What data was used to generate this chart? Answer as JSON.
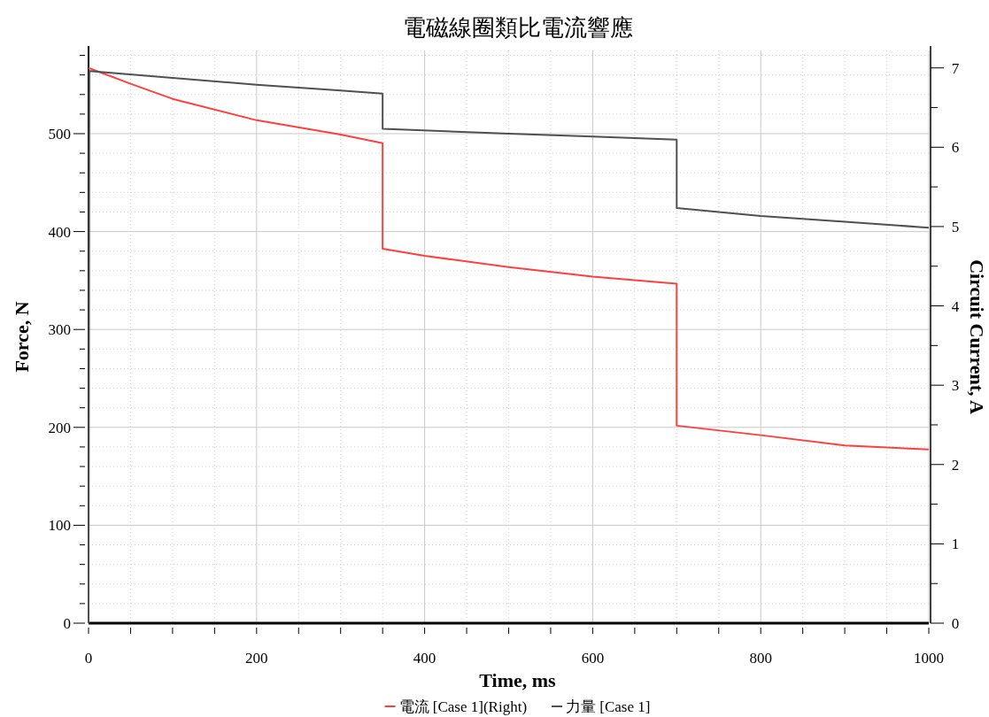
{
  "chart_data": {
    "type": "line",
    "title": "電磁線圈類比電流響應",
    "xlabel": "Time, ms",
    "ylabel": "Force, N",
    "y2label": "Circuit Current, A",
    "xlim": [
      0,
      1000
    ],
    "ylim": [
      0,
      585
    ],
    "y2lim": [
      0,
      7.22
    ],
    "xticks": [
      0,
      {
        "value": 50,
        "label": null
      },
      {
        "value": 100,
        "label": null
      },
      {
        "value": 150,
        "label": null
      },
      200,
      {
        "value": 250,
        "label": null
      },
      {
        "value": 300,
        "label": null
      },
      {
        "value": 350,
        "label": null
      },
      400,
      {
        "value": 450,
        "label": null
      },
      {
        "value": 500,
        "label": null
      },
      {
        "value": 550,
        "label": null
      },
      600,
      {
        "value": 650,
        "label": null
      },
      {
        "value": 700,
        "label": null
      },
      {
        "value": 750,
        "label": null
      },
      800,
      {
        "value": 850,
        "label": null
      },
      {
        "value": 900,
        "label": null
      },
      {
        "value": 950,
        "label": null
      },
      1000
    ],
    "yticks": [
      0,
      {
        "value": 20,
        "label": null
      },
      {
        "value": 40,
        "label": null
      },
      {
        "value": 60,
        "label": null
      },
      {
        "value": 80,
        "label": null
      },
      100,
      {
        "value": 120,
        "label": null
      },
      {
        "value": 140,
        "label": null
      },
      {
        "value": 160,
        "label": null
      },
      {
        "value": 180,
        "label": null
      },
      200,
      {
        "value": 220,
        "label": null
      },
      {
        "value": 240,
        "label": null
      },
      {
        "value": 260,
        "label": null
      },
      {
        "value": 280,
        "label": null
      },
      300,
      {
        "value": 320,
        "label": null
      },
      {
        "value": 340,
        "label": null
      },
      {
        "value": 360,
        "label": null
      },
      {
        "value": 380,
        "label": null
      },
      400,
      {
        "value": 420,
        "label": null
      },
      {
        "value": 440,
        "label": null
      },
      {
        "value": 460,
        "label": null
      },
      {
        "value": 480,
        "label": null
      },
      500,
      {
        "value": 520,
        "label": null
      },
      {
        "value": 540,
        "label": null
      },
      {
        "value": 560,
        "label": null
      },
      {
        "value": 580,
        "label": null
      }
    ],
    "y2ticks": [
      0,
      {
        "value": 0.5,
        "label": null
      },
      1,
      {
        "value": 1.5,
        "label": null
      },
      2,
      {
        "value": 2.5,
        "label": null
      },
      3,
      {
        "value": 3.5,
        "label": null
      },
      4,
      {
        "value": 4.5,
        "label": null
      },
      5,
      {
        "value": 5.5,
        "label": null
      },
      6,
      {
        "value": 6.5,
        "label": null
      },
      7
    ],
    "grid": true,
    "legend": "bottom",
    "marker": "none",
    "line_style": "solid",
    "series": [
      {
        "name": "電流 [Case 1](Right)",
        "color": "#ff4040",
        "axis": "y2",
        "x": [
          0,
          50,
          100,
          200,
          300,
          350,
          350,
          400,
          500,
          600,
          700,
          700,
          800,
          900,
          1000
        ],
        "values": [
          7.0,
          6.8,
          6.61,
          6.34,
          6.16,
          6.05,
          4.72,
          4.63,
          4.49,
          4.37,
          4.28,
          2.49,
          2.37,
          2.24,
          2.19
        ]
      },
      {
        "name": "力量 [Case 1]",
        "color": "#505050",
        "x": [
          0,
          1,
          100,
          200,
          300,
          350,
          350,
          500,
          600,
          700,
          700,
          800,
          900,
          1000
        ],
        "values": [
          0,
          564,
          557,
          550,
          544,
          541,
          505,
          500,
          497,
          494,
          424,
          416,
          410,
          404
        ]
      }
    ]
  }
}
